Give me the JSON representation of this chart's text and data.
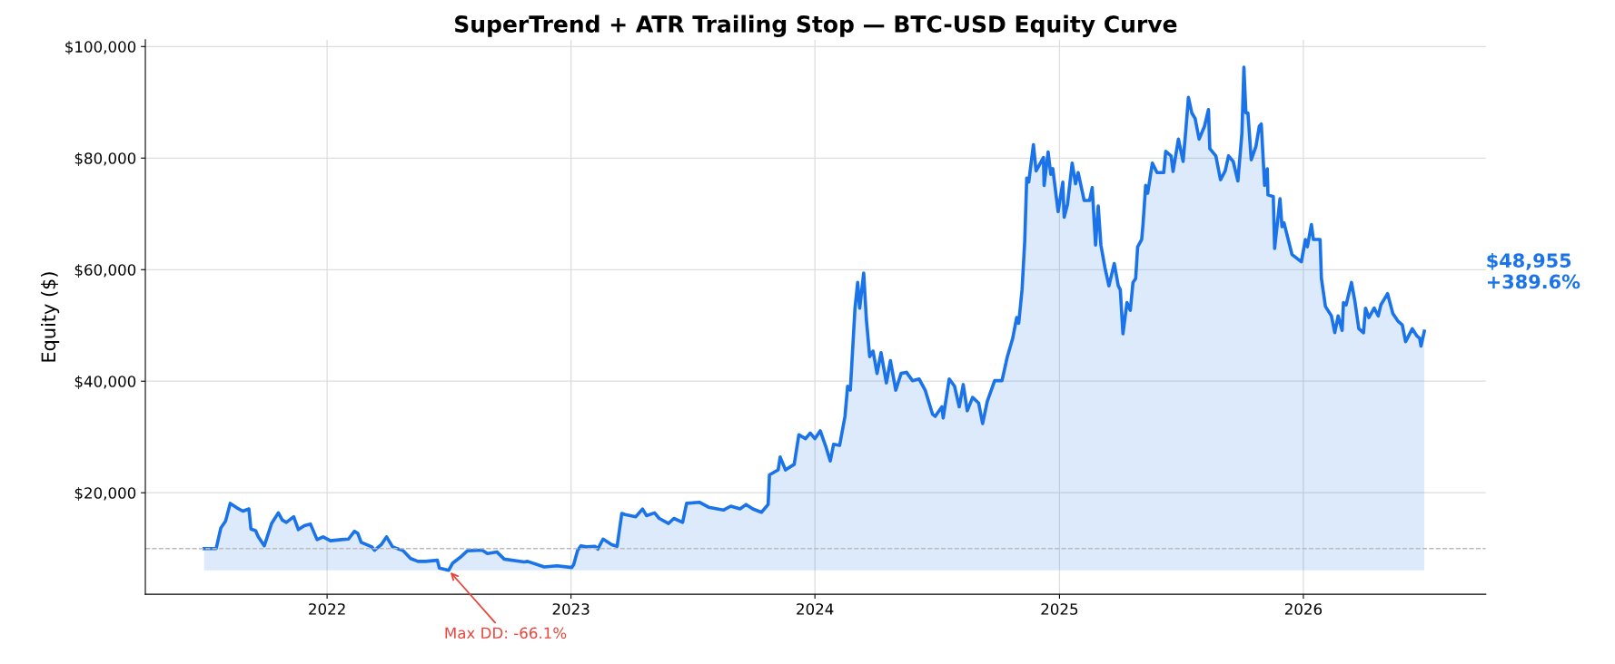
{
  "chart_data": {
    "type": "area",
    "title": "SuperTrend + ATR Trailing Stop — BTC-USD Equity Curve",
    "ylabel": "Equity ($)",
    "x": [
      "2021-07-01",
      "2021-07-19",
      "2021-07-26",
      "2021-08-02",
      "2021-08-09",
      "2021-08-19",
      "2021-08-28",
      "2021-09-06",
      "2021-09-09",
      "2021-09-16",
      "2021-09-20",
      "2021-09-29",
      "2021-10-10",
      "2021-10-20",
      "2021-10-26",
      "2021-11-01",
      "2021-11-12",
      "2021-11-19",
      "2021-11-28",
      "2021-12-07",
      "2021-12-17",
      "2021-12-26",
      "2022-01-06",
      "2022-01-22",
      "2022-02-02",
      "2022-02-11",
      "2022-02-16",
      "2022-02-21",
      "2022-03-09",
      "2022-03-13",
      "2022-03-23",
      "2022-03-31",
      "2022-04-09",
      "2022-04-25",
      "2022-05-06",
      "2022-05-17",
      "2022-05-28",
      "2022-06-15",
      "2022-06-18",
      "2022-07-02",
      "2022-07-08",
      "2022-07-19",
      "2022-07-30",
      "2022-08-21",
      "2022-08-29",
      "2022-09-12",
      "2022-09-23",
      "2022-10-23",
      "2022-10-28",
      "2022-11-22",
      "2022-12-11",
      "2023-01-02",
      "2023-01-05",
      "2023-01-11",
      "2023-01-16",
      "2023-01-24",
      "2023-02-06",
      "2023-02-10",
      "2023-02-18",
      "2023-03-03",
      "2023-03-11",
      "2023-03-18",
      "2023-03-23",
      "2023-04-08",
      "2023-04-18",
      "2023-04-24",
      "2023-05-06",
      "2023-05-13",
      "2023-05-27",
      "2023-06-04",
      "2023-06-17",
      "2023-06-23",
      "2023-07-12",
      "2023-07-26",
      "2023-08-17",
      "2023-08-28",
      "2023-09-11",
      "2023-09-20",
      "2023-09-30",
      "2023-10-13",
      "2023-10-23",
      "2023-10-25",
      "2023-11-07",
      "2023-11-10",
      "2023-11-18",
      "2023-12-01",
      "2023-12-08",
      "2023-12-18",
      "2023-12-25",
      "2024-01-01",
      "2024-01-09",
      "2024-01-17",
      "2024-01-24",
      "2024-01-29",
      "2024-02-07",
      "2024-02-15",
      "2024-02-19",
      "2024-02-23",
      "2024-03-01",
      "2024-03-05",
      "2024-03-08",
      "2024-03-14",
      "2024-03-18",
      "2024-03-23",
      "2024-03-28",
      "2024-04-03",
      "2024-04-09",
      "2024-04-17",
      "2024-04-23",
      "2024-05-01",
      "2024-05-09",
      "2024-05-17",
      "2024-05-26",
      "2024-06-05",
      "2024-06-14",
      "2024-06-25",
      "2024-06-29",
      "2024-07-09",
      "2024-07-11",
      "2024-07-20",
      "2024-07-28",
      "2024-08-04",
      "2024-08-10",
      "2024-08-16",
      "2024-08-24",
      "2024-09-02",
      "2024-09-08",
      "2024-09-15",
      "2024-09-26",
      "2024-10-07",
      "2024-10-15",
      "2024-10-23",
      "2024-10-29",
      "2024-11-01",
      "2024-11-06",
      "2024-11-10",
      "2024-11-13",
      "2024-11-16",
      "2024-11-23",
      "2024-11-27",
      "2024-12-08",
      "2024-12-09",
      "2024-12-15",
      "2024-12-19",
      "2024-12-22",
      "2024-12-30",
      "2025-01-06",
      "2025-01-08",
      "2025-01-13",
      "2025-01-20",
      "2025-01-25",
      "2025-01-29",
      "2025-02-07",
      "2025-02-15",
      "2025-02-19",
      "2025-02-24",
      "2025-02-28",
      "2025-03-04",
      "2025-03-10",
      "2025-03-16",
      "2025-03-24",
      "2025-03-30",
      "2025-04-02",
      "2025-04-06",
      "2025-04-12",
      "2025-04-17",
      "2025-04-21",
      "2025-04-25",
      "2025-04-28",
      "2025-05-04",
      "2025-05-06",
      "2025-05-10",
      "2025-05-13",
      "2025-05-20",
      "2025-05-27",
      "2025-06-06",
      "2025-06-09",
      "2025-06-17",
      "2025-06-20",
      "2025-06-28",
      "2025-07-05",
      "2025-07-09",
      "2025-07-13",
      "2025-07-18",
      "2025-07-23",
      "2025-07-29",
      "2025-08-06",
      "2025-08-12",
      "2025-08-14",
      "2025-08-23",
      "2025-08-30",
      "2025-09-06",
      "2025-09-11",
      "2025-09-18",
      "2025-09-25",
      "2025-10-01",
      "2025-10-04",
      "2025-10-07",
      "2025-10-10",
      "2025-10-15",
      "2025-10-22",
      "2025-10-27",
      "2025-10-30",
      "2025-11-04",
      "2025-11-08",
      "2025-11-09",
      "2025-11-17",
      "2025-11-19",
      "2025-11-27",
      "2025-11-30",
      "2025-12-03",
      "2025-12-15",
      "2025-12-29",
      "2026-01-04",
      "2026-01-07",
      "2026-01-13",
      "2026-01-16",
      "2026-01-26",
      "2026-01-28",
      "2026-02-03",
      "2026-02-12",
      "2026-02-17",
      "2026-02-22",
      "2026-02-28",
      "2026-03-02",
      "2026-03-06",
      "2026-03-14",
      "2026-03-19",
      "2026-03-25",
      "2026-04-01",
      "2026-04-04",
      "2026-04-09",
      "2026-04-17",
      "2026-04-23",
      "2026-04-27",
      "2026-05-07",
      "2026-05-15",
      "2026-05-23",
      "2026-05-29",
      "2026-06-03",
      "2026-06-13",
      "2026-06-20",
      "2026-06-24",
      "2026-06-26",
      "2026-07-01"
    ],
    "series": [
      {
        "color": "#1a73e8",
        "values": [
          10000,
          10000,
          13700,
          14900,
          18100,
          17300,
          16700,
          17100,
          13500,
          13200,
          12100,
          10500,
          14500,
          16400,
          15100,
          14700,
          15700,
          13400,
          14100,
          14400,
          11600,
          12100,
          11400,
          11600,
          11700,
          13100,
          12700,
          11100,
          10300,
          9700,
          10700,
          12100,
          10300,
          9600,
          8200,
          7700,
          7700,
          7900,
          6500,
          6100,
          7400,
          8400,
          9600,
          9700,
          9100,
          9400,
          8100,
          7600,
          7700,
          6700,
          6900,
          6600,
          7100,
          9700,
          10500,
          10300,
          10400,
          9900,
          11700,
          10700,
          10400,
          16300,
          16100,
          15700,
          17100,
          15900,
          16400,
          15400,
          14500,
          15400,
          14700,
          18100,
          18300,
          17400,
          16900,
          17600,
          17100,
          17900,
          17100,
          16500,
          17900,
          23200,
          24100,
          26400,
          24100,
          25100,
          30400,
          29700,
          30700,
          29700,
          31100,
          28400,
          25700,
          28700,
          28500,
          33700,
          39100,
          38400,
          53100,
          57700,
          53100,
          59400,
          51100,
          44400,
          45400,
          41400,
          45100,
          39700,
          43700,
          38400,
          41400,
          41600,
          40100,
          40400,
          38400,
          34100,
          33700,
          35400,
          33400,
          40400,
          39100,
          35400,
          39400,
          34700,
          37100,
          36100,
          32400,
          36400,
          40100,
          40100,
          44400,
          47700,
          51400,
          50400,
          56400,
          65100,
          76400,
          75700,
          82400,
          77700,
          80100,
          75100,
          81100,
          77100,
          78100,
          70400,
          75700,
          69400,
          71700,
          79100,
          75400,
          77400,
          72400,
          72400,
          74700,
          64400,
          71400,
          64400,
          60400,
          57100,
          61100,
          57100,
          56400,
          48500,
          54100,
          52700,
          57700,
          58400,
          64100,
          65400,
          68100,
          75100,
          73700,
          79100,
          77400,
          77400,
          81200,
          80400,
          77600,
          83400,
          79400,
          84900,
          90900,
          88100,
          87100,
          83400,
          85700,
          88700,
          81700,
          80400,
          76100,
          77700,
          80400,
          79400,
          75900,
          84400,
          96300,
          88100,
          88100,
          79700,
          82100,
          85700,
          86100,
          75100,
          78100,
          73400,
          73100,
          63800,
          72700,
          67700,
          68400,
          62700,
          61400,
          65400,
          64100,
          68100,
          65400,
          65400,
          58400,
          53400,
          51700,
          48700,
          51700,
          49100,
          54100,
          53700,
          57700,
          54400,
          49400,
          48700,
          53100,
          51400,
          53100,
          51700,
          53700,
          55700,
          52100,
          50700,
          50100,
          47100,
          49400,
          48100,
          47700,
          46300,
          48955
        ]
      }
    ],
    "xlim": [
      "2021-04-04",
      "2026-10-01"
    ],
    "xticks": [
      {
        "value": "2022-01-01",
        "label": "2022"
      },
      {
        "value": "2023-01-01",
        "label": "2023"
      },
      {
        "value": "2024-01-01",
        "label": "2024"
      },
      {
        "value": "2025-01-01",
        "label": "2025"
      },
      {
        "value": "2026-01-01",
        "label": "2026"
      }
    ],
    "ylim": [
      1800,
      101200
    ],
    "yticks": [
      {
        "value": 20000,
        "label": "$20,000"
      },
      {
        "value": 40000,
        "label": "$40,000"
      },
      {
        "value": 60000,
        "label": "$60,000"
      },
      {
        "value": 80000,
        "label": "$80,000"
      },
      {
        "value": 100000,
        "label": "$100,000"
      }
    ],
    "ref_lines": [
      {
        "axis": "y",
        "value": 10000,
        "color": "#bbbbbb",
        "line_style": "dashed"
      }
    ],
    "annotations": [
      {
        "text": "Max DD: -66.1%",
        "x": "2022-07-02",
        "y": 6100
      },
      "$48,955\n+389.6%"
    ],
    "grid": true,
    "line_style": "solid"
  }
}
